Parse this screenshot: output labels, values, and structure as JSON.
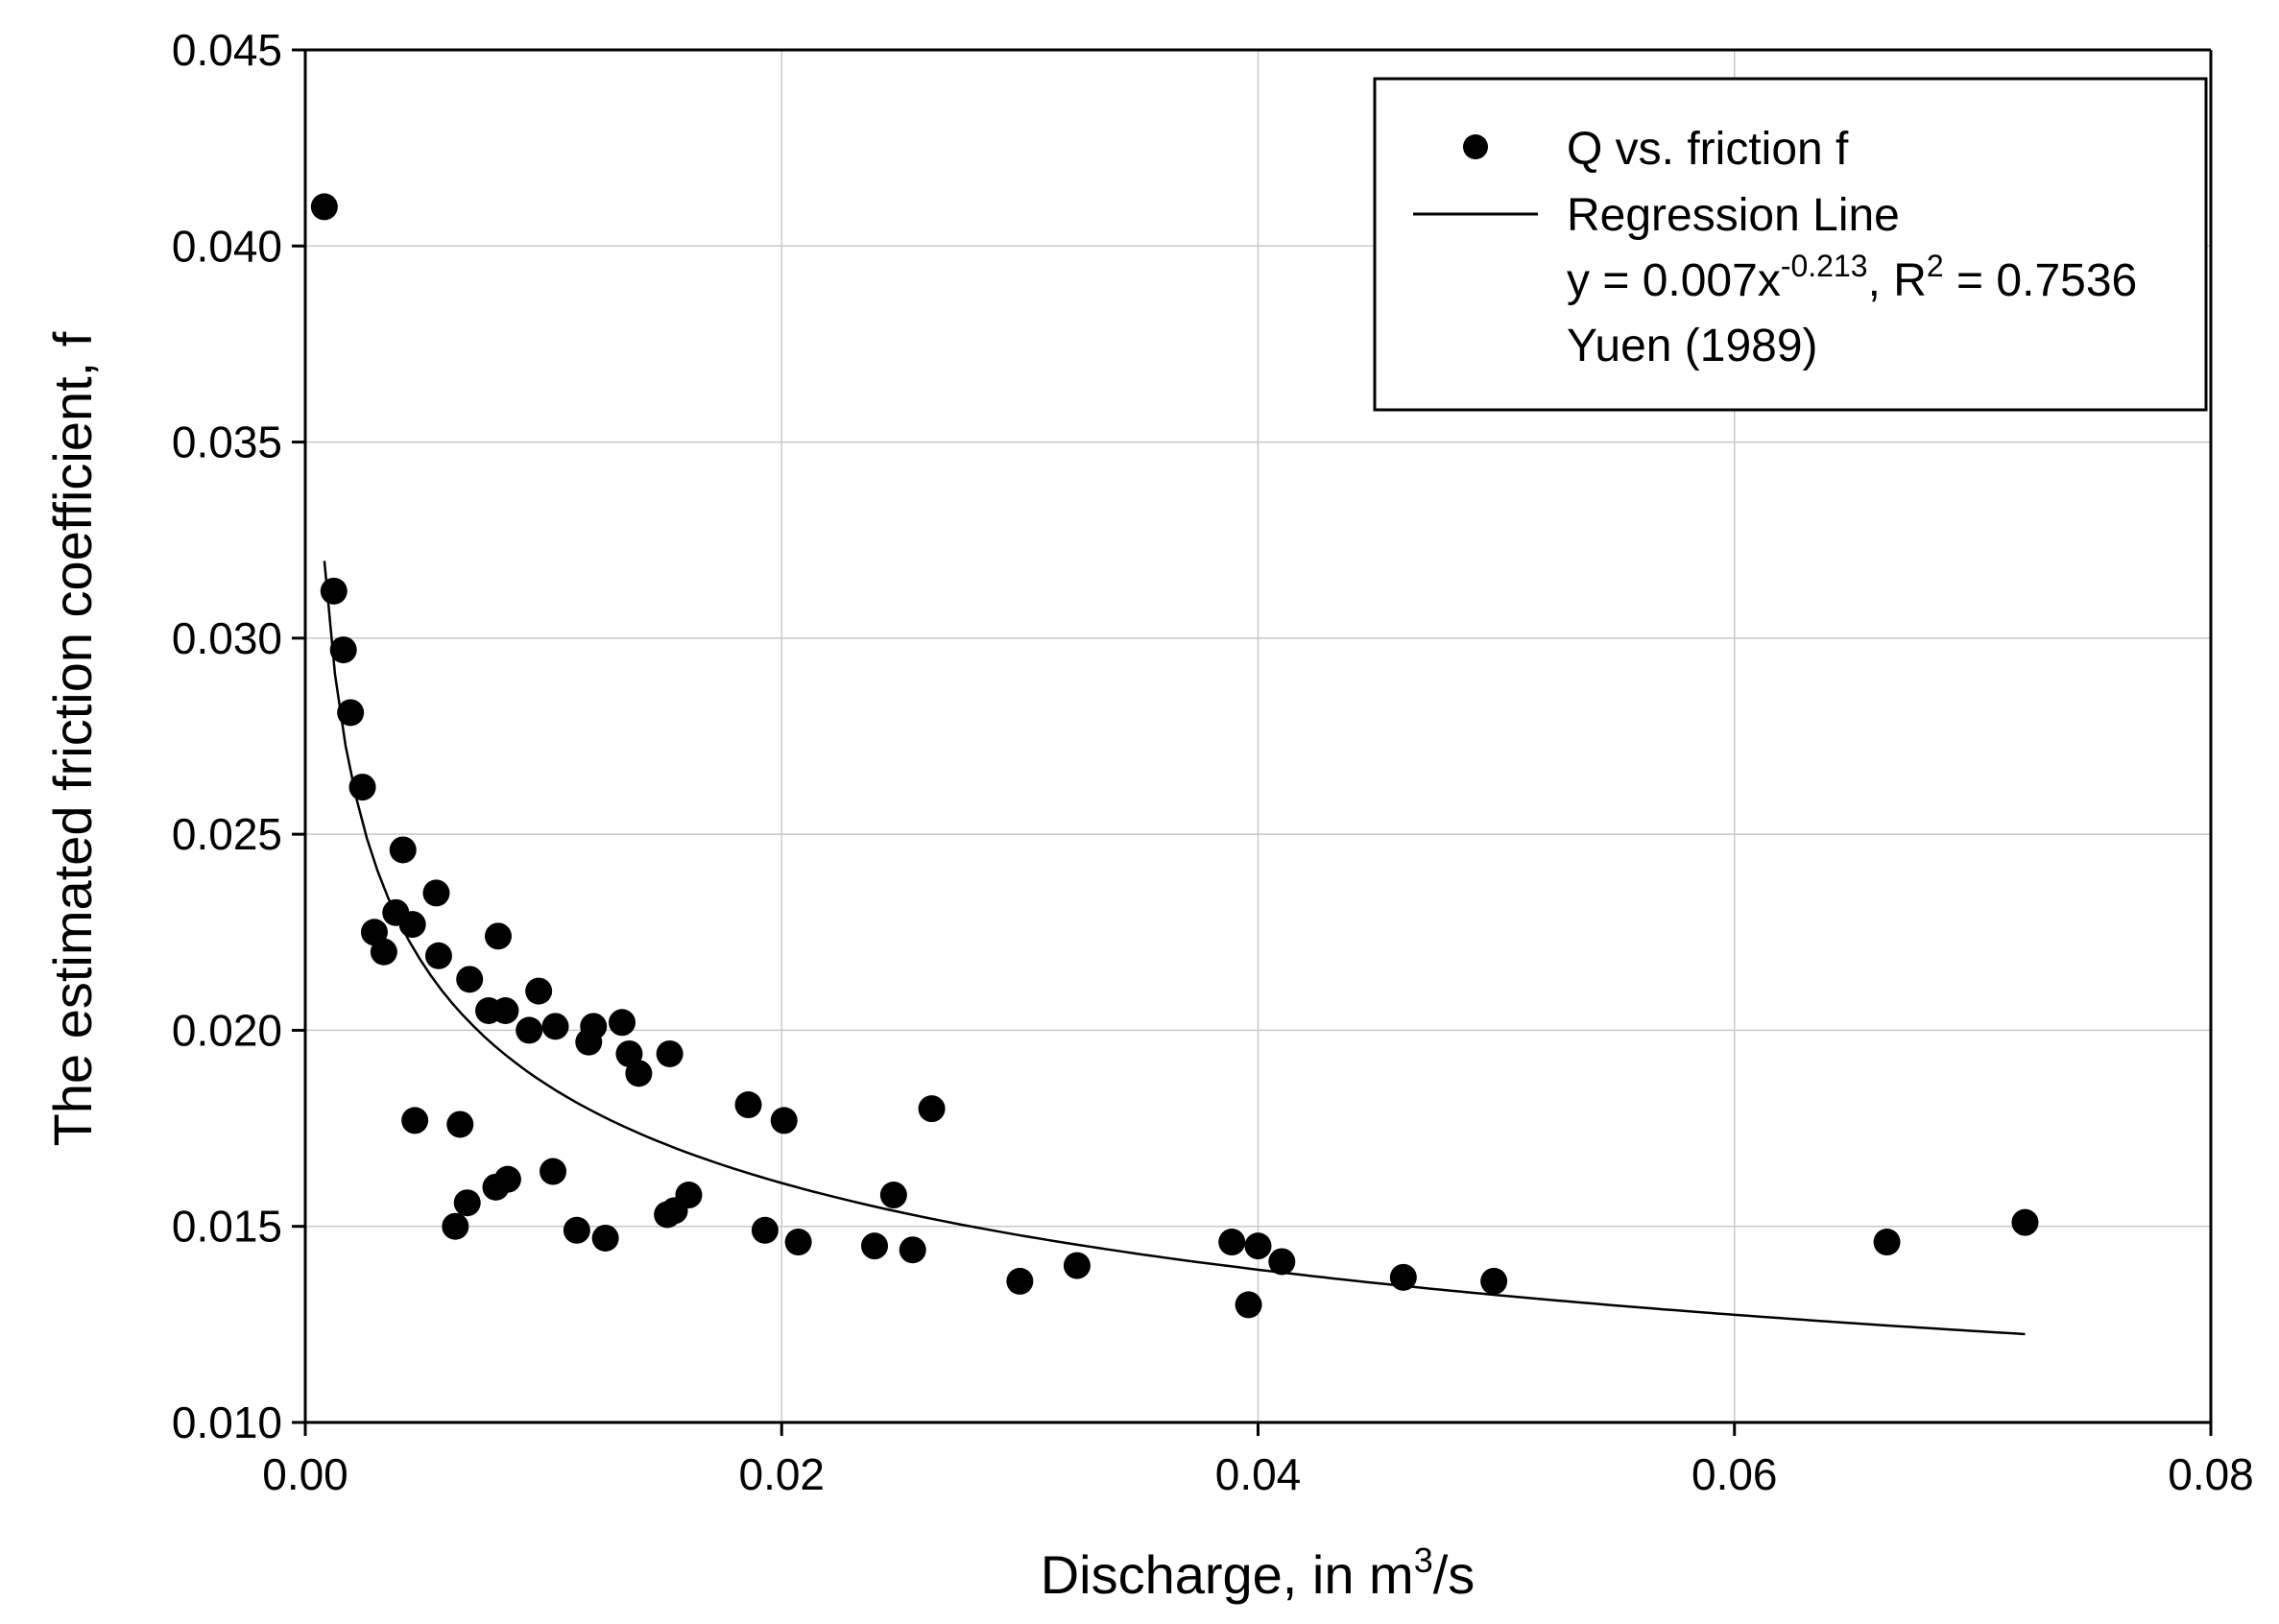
{
  "chart_data": {
    "type": "scatter",
    "xlabel": "Discharge, in m",
    "xlabel_sup": "3",
    "xlabel_suffix": "/s",
    "ylabel": "The estimated friction coefficient, f",
    "xlim": [
      0,
      0.08
    ],
    "ylim": [
      0.01,
      0.045
    ],
    "x_ticks": [
      0,
      0.02,
      0.04,
      0.06,
      0.08
    ],
    "x_tick_labels": [
      "0.00",
      "0.02",
      "0.04",
      "0.06",
      "0.08"
    ],
    "y_ticks": [
      0.01,
      0.015,
      0.02,
      0.025,
      0.03,
      0.035,
      0.04,
      0.045
    ],
    "y_tick_labels": [
      "0.010",
      "0.015",
      "0.020",
      "0.025",
      "0.030",
      "0.035",
      "0.040",
      "0.045"
    ],
    "grid": true,
    "legend_position": "top-right",
    "series": [
      {
        "name": "Q vs. friction f",
        "kind": "scatter",
        "color": "#000000",
        "points": [
          [
            0.0008,
            0.041
          ],
          [
            0.0012,
            0.0312
          ],
          [
            0.0016,
            0.0297
          ],
          [
            0.0019,
            0.0281
          ],
          [
            0.0024,
            0.0262
          ],
          [
            0.0029,
            0.0225
          ],
          [
            0.0033,
            0.022
          ],
          [
            0.0038,
            0.023
          ],
          [
            0.0041,
            0.0246
          ],
          [
            0.0045,
            0.0227
          ],
          [
            0.0046,
            0.0177
          ],
          [
            0.0055,
            0.0235
          ],
          [
            0.0056,
            0.0219
          ],
          [
            0.0063,
            0.015
          ],
          [
            0.0065,
            0.0176
          ],
          [
            0.0068,
            0.0156
          ],
          [
            0.0069,
            0.0213
          ],
          [
            0.0077,
            0.0205
          ],
          [
            0.008,
            0.016
          ],
          [
            0.0081,
            0.0224
          ],
          [
            0.0084,
            0.0205
          ],
          [
            0.0085,
            0.0162
          ],
          [
            0.0094,
            0.02
          ],
          [
            0.0098,
            0.021
          ],
          [
            0.0104,
            0.0164
          ],
          [
            0.0105,
            0.0201
          ],
          [
            0.0114,
            0.0149
          ],
          [
            0.0119,
            0.0197
          ],
          [
            0.0121,
            0.0201
          ],
          [
            0.0126,
            0.0147
          ],
          [
            0.0133,
            0.0202
          ],
          [
            0.0136,
            0.0194
          ],
          [
            0.014,
            0.0189
          ],
          [
            0.0152,
            0.0153
          ],
          [
            0.0153,
            0.0194
          ],
          [
            0.0155,
            0.0154
          ],
          [
            0.0161,
            0.0158
          ],
          [
            0.0186,
            0.0181
          ],
          [
            0.0193,
            0.0149
          ],
          [
            0.0201,
            0.0177
          ],
          [
            0.0207,
            0.0146
          ],
          [
            0.0239,
            0.0145
          ],
          [
            0.0247,
            0.0158
          ],
          [
            0.0255,
            0.0144
          ],
          [
            0.0263,
            0.018
          ],
          [
            0.03,
            0.0136
          ],
          [
            0.0324,
            0.014
          ],
          [
            0.0389,
            0.0146
          ],
          [
            0.0396,
            0.013
          ],
          [
            0.04,
            0.0145
          ],
          [
            0.041,
            0.0141
          ],
          [
            0.0461,
            0.0137
          ],
          [
            0.0499,
            0.0136
          ],
          [
            0.0664,
            0.0146
          ],
          [
            0.0722,
            0.0151
          ]
        ]
      },
      {
        "name": "Regression Line",
        "kind": "line",
        "color": "#000000",
        "equation": "y = 0.007x^-0.213",
        "coefficient": 0.007,
        "exponent": -0.213,
        "x_range": [
          0.0008,
          0.0722
        ]
      }
    ],
    "legend": {
      "entries": [
        "Q vs. friction f",
        "Regression Line"
      ],
      "equation_prefix": "y = 0.007x",
      "equation_exponent": "-0.213",
      "r2_prefix": ", R",
      "r2_sup": "2",
      "r2_suffix": " =  0.7536",
      "source": "Yuen (1989)"
    }
  }
}
